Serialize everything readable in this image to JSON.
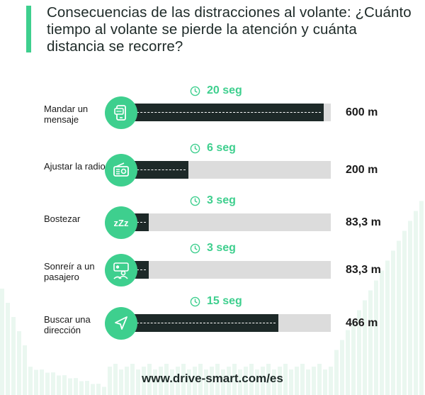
{
  "title": "Consecuencias de las distracciones al volante: ¿Cuánto tiempo al volante se pierde la atención y cuánta distancia se recorre?",
  "footer": "www.drive-smart.com/es",
  "colors": {
    "accent": "#3ecf8e",
    "bar": "#1d2928",
    "track": "#dcdcdc",
    "background_bars": "#eaf7f0"
  },
  "chart_data": {
    "type": "bar",
    "orientation": "horizontal",
    "categories": [
      "Mandar un mensaje",
      "Ajustar la radio",
      "Bostezar",
      "Sonreír a un pasajero",
      "Buscar una dirección"
    ],
    "values": [
      600,
      200,
      83.3,
      83.3,
      466
    ],
    "xlim": [
      0,
      620
    ],
    "rows": [
      {
        "label": "Mandar un mensaje",
        "time": "20 seg",
        "distance": "600 m",
        "value": 600,
        "icon": "phone-message-icon"
      },
      {
        "label": "Ajustar la radio",
        "time": "6 seg",
        "distance": "200 m",
        "value": 200,
        "icon": "radio-icon"
      },
      {
        "label": "Bostezar",
        "time": "3 seg",
        "distance": "83,3 m",
        "value": 83.3,
        "icon": "zzz-icon"
      },
      {
        "label": "Sonreír a un pasajero",
        "time": "3 seg",
        "distance": "83,3 m",
        "value": 83.3,
        "icon": "passenger-icon"
      },
      {
        "label": "Buscar una dirección",
        "time": "15 seg",
        "distance": "466 m",
        "value": 466,
        "icon": "navigation-arrow-icon"
      }
    ],
    "title": "Consecuencias de las distracciones al volante: ¿Cuánto tiempo al volante se pierde la atención y cuánta distancia se recorre?",
    "xlabel": "",
    "ylabel": ""
  }
}
